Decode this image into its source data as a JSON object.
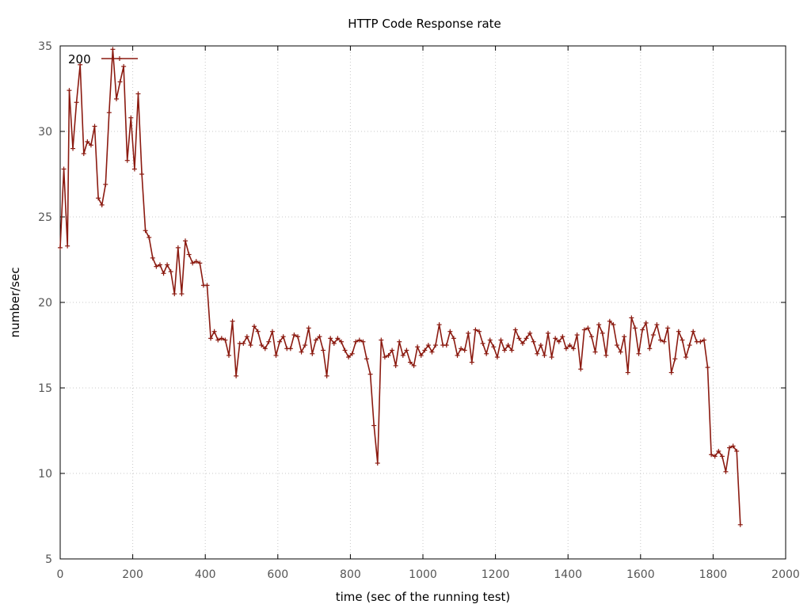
{
  "chart_data": {
    "type": "line",
    "title": "HTTP Code Response rate",
    "xlabel": "time (sec of the running test)",
    "ylabel": "number/sec",
    "xlim": [
      0,
      2000
    ],
    "ylim": [
      5,
      35
    ],
    "xticks": [
      0,
      200,
      400,
      600,
      800,
      1000,
      1200,
      1400,
      1600,
      1800,
      2000
    ],
    "yticks": [
      5,
      10,
      15,
      20,
      25,
      30,
      35
    ],
    "grid": true,
    "legend_position": "top-left",
    "color": "#8b1a10",
    "series": [
      {
        "name": "200",
        "x": [
          0,
          10,
          20,
          25,
          35,
          45,
          55,
          65,
          75,
          85,
          95,
          105,
          115,
          125,
          135,
          145,
          155,
          165,
          175,
          185,
          195,
          205,
          215,
          225,
          235,
          245,
          255,
          265,
          275,
          285,
          295,
          305,
          315,
          325,
          335,
          345,
          355,
          365,
          375,
          385,
          395,
          405,
          415,
          425,
          435,
          445,
          455,
          465,
          475,
          485,
          495,
          505,
          515,
          525,
          535,
          545,
          555,
          565,
          575,
          585,
          595,
          605,
          615,
          625,
          635,
          645,
          655,
          665,
          675,
          685,
          695,
          705,
          715,
          725,
          735,
          745,
          755,
          765,
          775,
          785,
          795,
          805,
          815,
          825,
          835,
          845,
          855,
          865,
          875,
          885,
          895,
          905,
          915,
          925,
          935,
          945,
          955,
          965,
          975,
          985,
          995,
          1005,
          1015,
          1025,
          1035,
          1045,
          1055,
          1065,
          1075,
          1085,
          1095,
          1105,
          1115,
          1125,
          1135,
          1145,
          1155,
          1165,
          1175,
          1185,
          1195,
          1205,
          1215,
          1225,
          1235,
          1245,
          1255,
          1265,
          1275,
          1285,
          1295,
          1305,
          1315,
          1325,
          1335,
          1345,
          1355,
          1365,
          1375,
          1385,
          1395,
          1405,
          1415,
          1425,
          1435,
          1445,
          1455,
          1465,
          1475,
          1485,
          1495,
          1505,
          1515,
          1525,
          1535,
          1545,
          1555,
          1565,
          1575,
          1585,
          1595,
          1605,
          1615,
          1625,
          1635,
          1645,
          1655,
          1665,
          1675,
          1685,
          1695,
          1705,
          1715,
          1725,
          1735,
          1745,
          1755,
          1765,
          1775,
          1785,
          1795,
          1805,
          1815,
          1825,
          1835,
          1845,
          1855,
          1865,
          1875
        ],
        "y": [
          23.2,
          27.8,
          23.3,
          32.4,
          29.0,
          31.7,
          33.9,
          28.7,
          29.4,
          29.2,
          30.3,
          26.1,
          25.7,
          26.9,
          31.1,
          34.8,
          31.9,
          32.9,
          33.8,
          28.3,
          30.8,
          27.8,
          32.2,
          27.5,
          24.2,
          23.8,
          22.6,
          22.1,
          22.2,
          21.7,
          22.2,
          21.8,
          20.5,
          23.2,
          20.5,
          23.6,
          22.8,
          22.3,
          22.4,
          22.3,
          21.0,
          21.0,
          17.9,
          18.3,
          17.8,
          17.9,
          17.8,
          16.9,
          18.9,
          15.7,
          17.6,
          17.6,
          18.0,
          17.5,
          18.6,
          18.3,
          17.5,
          17.3,
          17.7,
          18.3,
          16.9,
          17.7,
          18.0,
          17.3,
          17.3,
          18.1,
          18.0,
          17.1,
          17.5,
          18.5,
          17.0,
          17.8,
          18.0,
          17.2,
          15.7,
          17.9,
          17.6,
          17.9,
          17.7,
          17.2,
          16.8,
          17.0,
          17.7,
          17.8,
          17.7,
          16.7,
          15.8,
          12.8,
          10.6,
          17.8,
          16.8,
          16.9,
          17.2,
          16.3,
          17.7,
          16.9,
          17.2,
          16.5,
          16.3,
          17.4,
          16.9,
          17.2,
          17.5,
          17.1,
          17.5,
          18.7,
          17.5,
          17.5,
          18.3,
          17.9,
          16.9,
          17.3,
          17.2,
          18.2,
          16.5,
          18.4,
          18.3,
          17.6,
          17.0,
          17.8,
          17.4,
          16.8,
          17.8,
          17.2,
          17.5,
          17.2,
          18.4,
          17.9,
          17.6,
          17.9,
          18.2,
          17.7,
          17.0,
          17.5,
          16.9,
          18.2,
          16.8,
          17.9,
          17.7,
          18.0,
          17.3,
          17.5,
          17.3,
          18.1,
          16.1,
          18.4,
          18.5,
          18.0,
          17.1,
          18.7,
          18.2,
          16.9,
          18.9,
          18.7,
          17.5,
          17.1,
          18.0,
          15.9,
          19.1,
          18.5,
          17.0,
          18.4,
          18.8,
          17.3,
          18.1,
          18.7,
          17.8,
          17.7,
          18.5,
          15.9,
          16.7,
          18.3,
          17.8,
          16.8,
          17.5,
          18.3,
          17.7,
          17.7,
          17.8,
          16.2,
          11.1,
          11.0,
          11.3,
          11.0,
          10.1,
          11.5,
          11.6,
          11.3,
          7.0
        ]
      }
    ]
  }
}
